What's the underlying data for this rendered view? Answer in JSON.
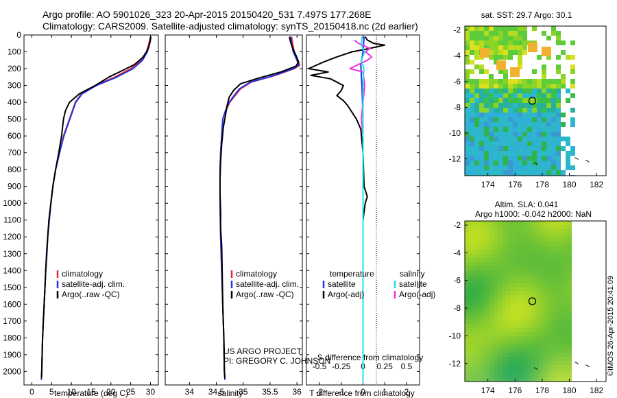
{
  "header": {
    "line1": "Argo profile: AO 5901026_323 20-Apr-2015 20150420_531 7.497S 177.268E",
    "line2": "Climatology: CARS2009. Satellite-adjusted climatology: synTS_20150418.nc (2d earlier)"
  },
  "colors": {
    "climatology": "#e8262a",
    "satellite": "#2030e6",
    "argo": "#000000",
    "sat_salinity": "#22e0ee",
    "argo_salinity": "#f030e0"
  },
  "depth_axis": {
    "ticks": [
      0,
      100,
      200,
      300,
      400,
      500,
      600,
      700,
      800,
      900,
      1000,
      1100,
      1200,
      1300,
      1400,
      1500,
      1600,
      1700,
      1800,
      1900,
      2000
    ],
    "ylim": [
      0,
      2080
    ]
  },
  "chart_data": [
    {
      "type": "line",
      "id": "temperature",
      "xlabel": "temperature (deg C)",
      "ylabel": "depth",
      "xlim": [
        -2,
        32
      ],
      "xticks": [
        0,
        5,
        10,
        15,
        20,
        25,
        30
      ],
      "legend": [
        "climatology",
        "satellite-adj. clim.",
        "Argo(..raw -QC)"
      ],
      "legend_position": "lower-center",
      "series": [
        {
          "name": "climatology",
          "color": "#e8262a",
          "points": [
            [
              30,
              10
            ],
            [
              29.6,
              50
            ],
            [
              29,
              100
            ],
            [
              27.5,
              150
            ],
            [
              25,
              200
            ],
            [
              21,
              250
            ],
            [
              16,
              300
            ],
            [
              12.5,
              350
            ],
            [
              11,
              400
            ],
            [
              9.5,
              500
            ],
            [
              8,
              600
            ],
            [
              7,
              700
            ],
            [
              6,
              800
            ],
            [
              5.3,
              900
            ],
            [
              4.8,
              1000
            ],
            [
              4.4,
              1100
            ],
            [
              4,
              1200
            ],
            [
              3.8,
              1300
            ],
            [
              3.5,
              1400
            ],
            [
              3.3,
              1500
            ],
            [
              3.1,
              1600
            ],
            [
              2.9,
              1700
            ],
            [
              2.7,
              1800
            ],
            [
              2.6,
              1900
            ],
            [
              2.5,
              2000
            ],
            [
              2.4,
              2050
            ]
          ]
        },
        {
          "name": "satellite-adj. clim.",
          "color": "#2030e6",
          "points": [
            [
              30.2,
              10
            ],
            [
              29.8,
              50
            ],
            [
              29.2,
              100
            ],
            [
              28,
              150
            ],
            [
              25.6,
              200
            ],
            [
              21.5,
              250
            ],
            [
              16.3,
              300
            ],
            [
              12.7,
              350
            ],
            [
              11.1,
              400
            ],
            [
              9.6,
              500
            ],
            [
              8.1,
              600
            ],
            [
              7,
              700
            ],
            [
              6,
              800
            ],
            [
              5.3,
              900
            ],
            [
              4.8,
              1000
            ],
            [
              4.4,
              1100
            ],
            [
              4,
              1200
            ],
            [
              3.8,
              1300
            ],
            [
              3.5,
              1400
            ],
            [
              3.3,
              1500
            ],
            [
              3.1,
              1600
            ],
            [
              2.9,
              1700
            ],
            [
              2.7,
              1800
            ],
            [
              2.6,
              1900
            ],
            [
              2.5,
              2000
            ],
            [
              2.4,
              2050
            ]
          ]
        },
        {
          "name": "Argo(..raw -QC)",
          "color": "#000000",
          "points": [
            [
              30,
              10
            ],
            [
              29.9,
              40
            ],
            [
              29.6,
              70
            ],
            [
              29,
              100
            ],
            [
              28.2,
              130
            ],
            [
              26,
              175
            ],
            [
              23,
              210
            ],
            [
              19.5,
              250
            ],
            [
              16,
              300
            ],
            [
              12,
              350
            ],
            [
              9.5,
              400
            ],
            [
              8.5,
              450
            ],
            [
              8,
              500
            ],
            [
              7.5,
              600
            ],
            [
              6.8,
              700
            ],
            [
              6,
              800
            ],
            [
              5.3,
              900
            ],
            [
              4.8,
              1000
            ],
            [
              4.3,
              1100
            ],
            [
              4,
              1200
            ],
            [
              3.7,
              1300
            ],
            [
              3.5,
              1400
            ],
            [
              3.3,
              1500
            ],
            [
              3.1,
              1600
            ],
            [
              2.9,
              1700
            ],
            [
              2.7,
              1800
            ],
            [
              2.6,
              1900
            ],
            [
              2.5,
              2000
            ],
            [
              2.4,
              2040
            ]
          ]
        }
      ]
    },
    {
      "type": "line",
      "id": "salinity",
      "xlabel": "salinity",
      "xlim": [
        33.55,
        36.1
      ],
      "xticks": [
        34,
        34.5,
        35,
        35.5,
        36
      ],
      "legend": [
        "climatology",
        "satellite-adj. clim.",
        "Argo(..raw -QC)"
      ],
      "legend_position": "lower-center",
      "credit": [
        "US ARGO PROJECT",
        "PI: GREGORY C. JOHNSON"
      ],
      "series": [
        {
          "name": "climatology",
          "color": "#e8262a",
          "points": [
            [
              35.9,
              10
            ],
            [
              35.92,
              50
            ],
            [
              35.95,
              100
            ],
            [
              36.02,
              150
            ],
            [
              36.05,
              180
            ],
            [
              35.95,
              200
            ],
            [
              35.6,
              240
            ],
            [
              35.15,
              280
            ],
            [
              34.95,
              320
            ],
            [
              34.85,
              360
            ],
            [
              34.75,
              400
            ],
            [
              34.68,
              450
            ],
            [
              34.62,
              500
            ],
            [
              34.6,
              600
            ],
            [
              34.58,
              700
            ],
            [
              34.57,
              800
            ],
            [
              34.57,
              1000
            ],
            [
              34.58,
              1200
            ],
            [
              34.6,
              1400
            ],
            [
              34.62,
              1600
            ],
            [
              34.64,
              1800
            ],
            [
              34.65,
              2000
            ],
            [
              34.66,
              2050
            ]
          ]
        },
        {
          "name": "satellite-adj. clim.",
          "color": "#2030e6",
          "points": [
            [
              35.88,
              10
            ],
            [
              35.9,
              50
            ],
            [
              35.93,
              100
            ],
            [
              36,
              150
            ],
            [
              36.03,
              180
            ],
            [
              35.93,
              200
            ],
            [
              35.58,
              240
            ],
            [
              35.13,
              280
            ],
            [
              34.93,
              320
            ],
            [
              34.83,
              360
            ],
            [
              34.74,
              400
            ],
            [
              34.67,
              450
            ],
            [
              34.62,
              500
            ],
            [
              34.6,
              600
            ],
            [
              34.58,
              700
            ],
            [
              34.57,
              800
            ],
            [
              34.57,
              1000
            ],
            [
              34.58,
              1200
            ],
            [
              34.6,
              1400
            ],
            [
              34.62,
              1600
            ],
            [
              34.64,
              1800
            ],
            [
              34.65,
              2000
            ],
            [
              34.66,
              2050
            ]
          ]
        },
        {
          "name": "Argo(..raw -QC)",
          "color": "#000000",
          "points": [
            [
              35.86,
              10
            ],
            [
              35.88,
              40
            ],
            [
              35.92,
              80
            ],
            [
              35.98,
              120
            ],
            [
              36.03,
              160
            ],
            [
              35.98,
              185
            ],
            [
              35.7,
              220
            ],
            [
              35.3,
              255
            ],
            [
              34.95,
              290
            ],
            [
              34.82,
              330
            ],
            [
              34.74,
              370
            ],
            [
              34.7,
              420
            ],
            [
              34.67,
              480
            ],
            [
              34.63,
              550
            ],
            [
              34.6,
              650
            ],
            [
              34.58,
              750
            ],
            [
              34.57,
              850
            ],
            [
              34.57,
              950
            ],
            [
              34.58,
              1050
            ],
            [
              34.58,
              1150
            ],
            [
              34.6,
              1250
            ],
            [
              34.61,
              1400
            ],
            [
              34.62,
              1600
            ],
            [
              34.64,
              1800
            ],
            [
              34.65,
              2000
            ],
            [
              34.66,
              2040
            ]
          ]
        }
      ]
    },
    {
      "type": "line",
      "id": "difference",
      "xlabel_bottom": "T difference from climatology",
      "xlabel_top": "S difference from climatology",
      "xlim": [
        -2.6,
        2.6
      ],
      "xticks_bottom": [
        -2,
        -1,
        0,
        1,
        2
      ],
      "xticks_top": [
        -0.5,
        -0.25,
        0,
        0.25,
        0.5
      ],
      "xlim_top": [
        -0.65,
        0.65
      ],
      "legend_temperature": {
        "title": "temperature",
        "items": [
          "satellite",
          "Argo(-adj)"
        ]
      },
      "legend_salinity": {
        "title": "salinity",
        "items": [
          "satellite",
          "Argo(-adj)"
        ]
      },
      "series": [
        {
          "name": "temperature Argo(-adj)",
          "color": "#000000",
          "points": [
            [
              0.1,
              10
            ],
            [
              0.2,
              30
            ],
            [
              0.5,
              50
            ],
            [
              1,
              60
            ],
            [
              0.3,
              80
            ],
            [
              -0.5,
              100
            ],
            [
              -1.2,
              130
            ],
            [
              -1.8,
              160
            ],
            [
              -2.5,
              200
            ],
            [
              -1.6,
              220
            ],
            [
              -2.4,
              240
            ],
            [
              -1.5,
              260
            ],
            [
              -1.2,
              280
            ],
            [
              -0.9,
              300
            ],
            [
              -1,
              330
            ],
            [
              -1.2,
              360
            ],
            [
              -0.9,
              390
            ],
            [
              -0.7,
              420
            ],
            [
              -0.5,
              460
            ],
            [
              -0.3,
              500
            ],
            [
              -0.1,
              560
            ],
            [
              0,
              700
            ],
            [
              0.05,
              900
            ],
            [
              0.2,
              960
            ],
            [
              0.1,
              1000
            ],
            [
              0,
              1100
            ],
            [
              0,
              2000
            ]
          ]
        },
        {
          "name": "temperature satellite",
          "color": "#2030e6",
          "points": [
            [
              0.05,
              10
            ],
            [
              0,
              100
            ],
            [
              -0.1,
              180
            ],
            [
              -0.05,
              300
            ],
            [
              0,
              500
            ],
            [
              0,
              2060
            ]
          ]
        },
        {
          "name": "salinity Argo(-adj)",
          "color": "#f030e0",
          "points": [
            [
              -0.1,
              30
            ],
            [
              -0.05,
              50
            ],
            [
              0.08,
              80
            ],
            [
              0.03,
              100
            ],
            [
              0.1,
              130
            ],
            [
              0.05,
              150
            ],
            [
              -0.15,
              200
            ],
            [
              0,
              220
            ],
            [
              0.02,
              300
            ],
            [
              0,
              400
            ],
            [
              -0.02,
              500
            ],
            [
              0,
              600
            ],
            [
              0,
              1150
            ],
            [
              0,
              2000
            ]
          ]
        },
        {
          "name": "salinity satellite",
          "color": "#22e0ee",
          "points": [
            [
              -0.01,
              10
            ],
            [
              -0.02,
              60
            ],
            [
              0.02,
              100
            ],
            [
              -0.02,
              150
            ],
            [
              0.01,
              200
            ],
            [
              0,
              300
            ],
            [
              0,
              2060
            ]
          ]
        }
      ]
    },
    {
      "type": "heatmap",
      "id": "sst-map",
      "title": "sat. SST: 29.7  Argo: 30.1",
      "xticks": [
        174,
        176,
        178,
        180,
        182
      ],
      "yticks": [
        -2,
        -4,
        -6,
        -8,
        -10,
        -12
      ],
      "xlim": [
        172.3,
        182.7
      ],
      "ylim": [
        -13.3,
        -1.7
      ],
      "float_position": [
        177.27,
        -7.5
      ]
    },
    {
      "type": "heatmap",
      "id": "sla-map",
      "title_line1": "Altim. SLA: 0.041",
      "title_line2": "Argo h1000: -0.042 h2000: NaN",
      "xticks": [
        174,
        176,
        178,
        180,
        182
      ],
      "yticks": [
        -2,
        -4,
        -6,
        -8,
        -10,
        -12
      ],
      "xlim": [
        172.3,
        182.7
      ],
      "ylim": [
        -13.3,
        -1.7
      ],
      "float_position": [
        177.27,
        -7.5
      ]
    }
  ],
  "side_label": "©IMOS 26-Apr-2015 20:41:09"
}
